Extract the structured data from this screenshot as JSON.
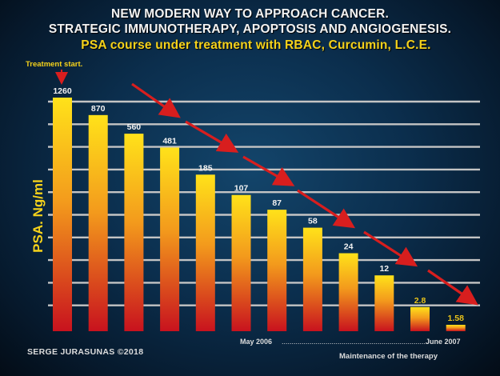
{
  "titles": {
    "line1": "NEW MODERN WAY TO APPROACH CANCER.",
    "line2": "STRATEGIC IMMUNOTHERAPY, APOPTOSIS AND ANGIOGENESIS.",
    "line3": "PSA course under treatment with RBAC, Curcumin, L.C.E."
  },
  "annotations": {
    "treatment_start": "Treatment start.",
    "may": "May 2006",
    "june": "June 2007",
    "maintenance": "Maintenance of the therapy",
    "credit": "SERGE JURASUNAS ©2018"
  },
  "chart_data": {
    "type": "bar",
    "ylabel": "PSA. Ng/ml",
    "series": [
      {
        "values": [
          1260,
          870,
          560,
          481,
          185,
          107,
          87,
          58,
          24,
          12,
          2.8,
          1.58
        ],
        "labels": [
          "1260",
          "870",
          "560",
          "481",
          "185",
          "107",
          "87",
          "58",
          "24",
          "12",
          "2.8",
          "1.58"
        ]
      }
    ],
    "grid": true,
    "legend": "none",
    "trend": "decreasing"
  },
  "colors": {
    "bar_top": "#ffe21a",
    "bar_mid": "#f2901c",
    "bar_bottom": "#c8121e",
    "grid": "#c4c4c4",
    "arrow": "#d81e1e",
    "title_highlight": "#f5d21b"
  }
}
